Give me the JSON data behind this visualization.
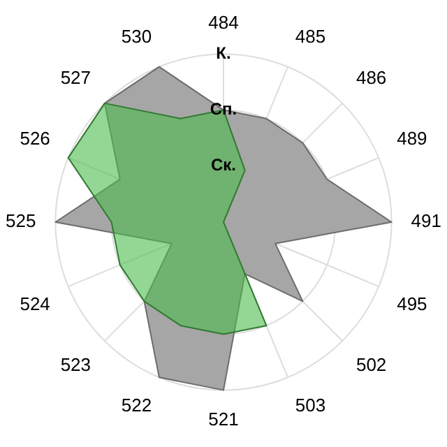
{
  "chart_data": {
    "type": "radar",
    "categories": [
      "484",
      "485",
      "486",
      "489",
      "491",
      "495",
      "502",
      "503",
      "521",
      "522",
      "523",
      "524",
      "525",
      "526",
      "527",
      "530"
    ],
    "series": [
      {
        "color": "#a6a6a6",
        "values": [
          2,
          2,
          2,
          2,
          3,
          1,
          2,
          1,
          3,
          3,
          2,
          1,
          3,
          2,
          3,
          3
        ]
      },
      {
        "color": "#4cbb4c",
        "values": [
          2,
          1,
          0,
          0,
          0,
          0,
          0,
          2,
          2,
          2,
          2,
          2,
          2,
          3,
          3,
          2
        ]
      }
    ],
    "ylim": [
      0,
      3
    ],
    "yticks": [
      {
        "value": 1,
        "label": "Ск."
      },
      {
        "value": 2,
        "label": "Сп."
      },
      {
        "value": 3,
        "label": "К."
      }
    ],
    "grid": true,
    "legend": false,
    "marker": "none"
  }
}
